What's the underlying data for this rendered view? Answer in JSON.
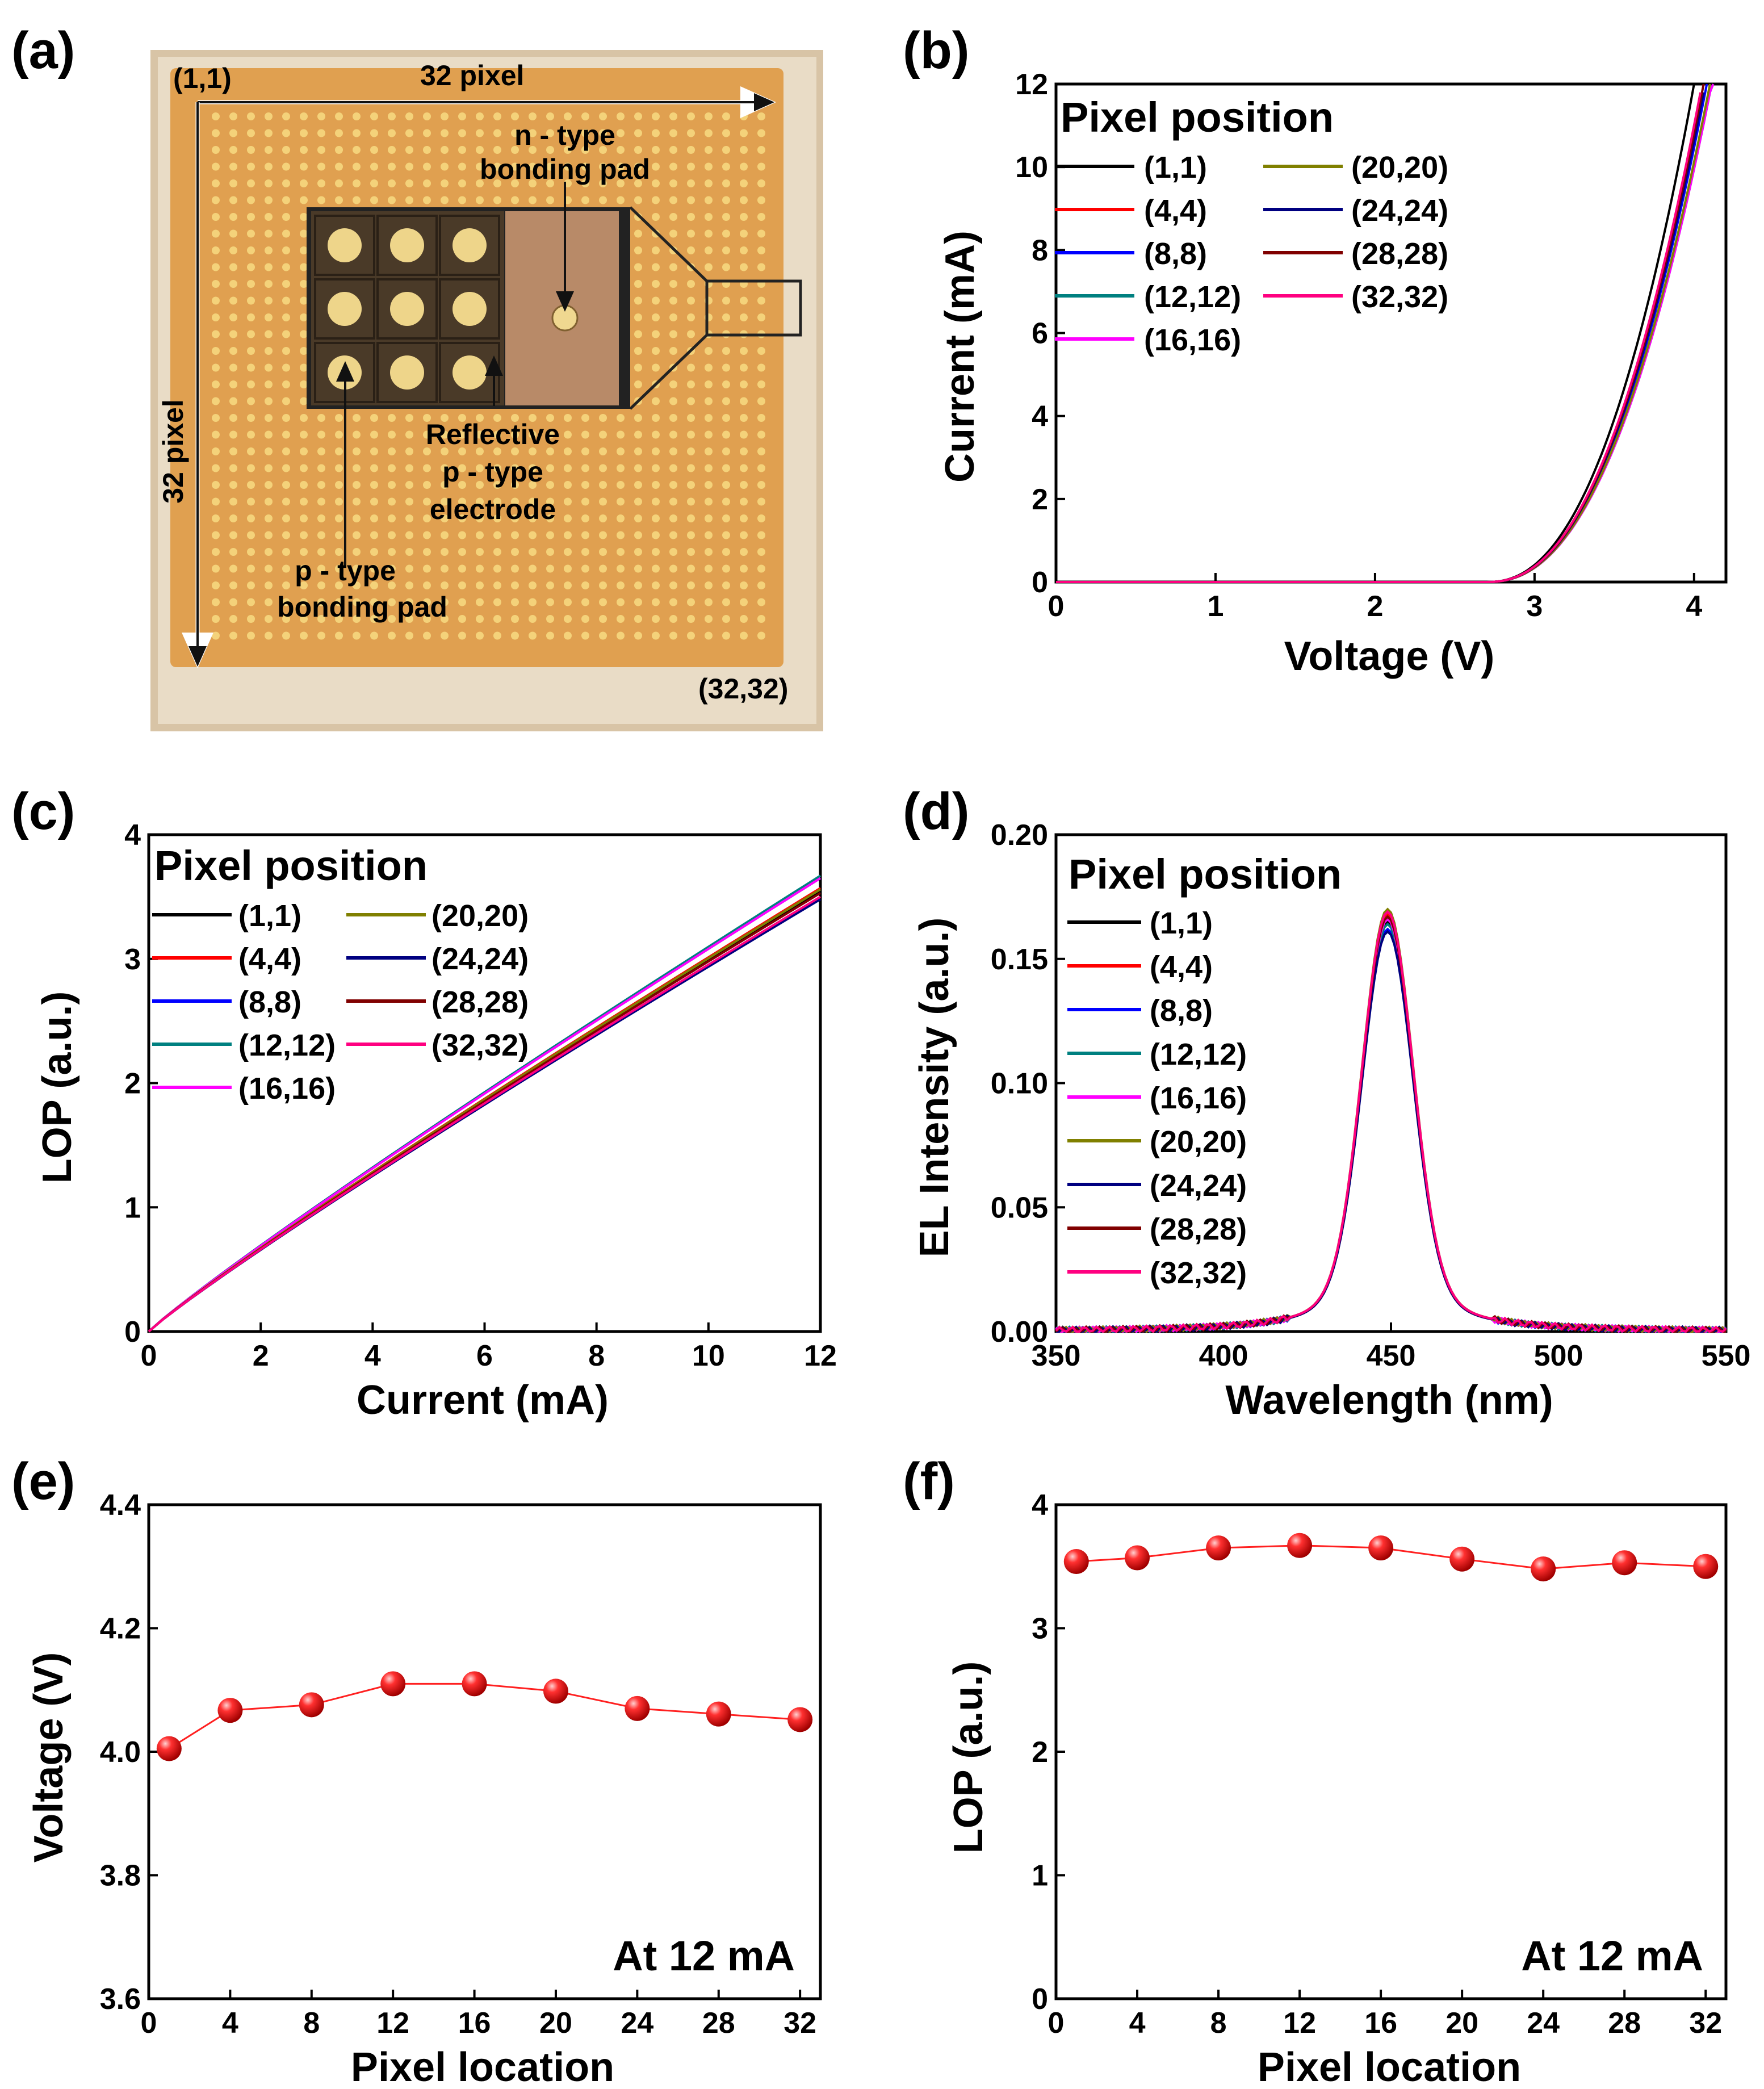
{
  "panels": {
    "a": {
      "letter": "(a)",
      "corner_top_left": "(1,1)",
      "corner_bottom_right": "(32,32)",
      "width_label": "32 pixel",
      "height_label": "32 pixel",
      "n_pad_label_1": "n - type",
      "n_pad_label_2": "bonding pad",
      "p_electrode_label_1": "Reflective",
      "p_electrode_label_2": "p - type",
      "p_electrode_label_3": "electrode",
      "p_pad_label_1": "p - type",
      "p_pad_label_2": "bonding pad",
      "colors": {
        "chip": "#e0a050",
        "dot": "#f4d27a",
        "frame": "#d8c4a6",
        "inset_dark": "#4a3a28",
        "inset_light": "#b88a68"
      }
    },
    "b": {
      "letter": "(b)"
    },
    "c": {
      "letter": "(c)"
    },
    "d": {
      "letter": "(d)"
    },
    "e": {
      "letter": "(e)"
    },
    "f": {
      "letter": "(f)"
    }
  },
  "legend": {
    "title": "Pixel position",
    "series": [
      {
        "name": "(1,1)",
        "color": "#000000"
      },
      {
        "name": "(4,4)",
        "color": "#ff0000"
      },
      {
        "name": "(8,8)",
        "color": "#0000ff"
      },
      {
        "name": "(12,12)",
        "color": "#008080"
      },
      {
        "name": "(16,16)",
        "color": "#ff00ff"
      },
      {
        "name": "(20,20)",
        "color": "#808000"
      },
      {
        "name": "(24,24)",
        "color": "#000080"
      },
      {
        "name": "(28,28)",
        "color": "#800000"
      },
      {
        "name": "(32,32)",
        "color": "#ff0080"
      }
    ]
  },
  "chart_data": [
    {
      "id": "b",
      "type": "line",
      "title": "",
      "xlabel": "Voltage (V)",
      "ylabel": "Current (mA)",
      "xlim": [
        0,
        4.2
      ],
      "ylim": [
        0,
        12
      ],
      "xticks": [
        0,
        1,
        2,
        3,
        4
      ],
      "yticks": [
        0,
        2,
        4,
        6,
        8,
        10,
        12
      ],
      "model": "exponential I-V curves, turn-on ~2.7 V",
      "series": [
        {
          "name": "(1,1)",
          "v_at_12mA": 4.0
        },
        {
          "name": "(4,4)",
          "v_at_12mA": 4.07
        },
        {
          "name": "(8,8)",
          "v_at_12mA": 4.08
        },
        {
          "name": "(12,12)",
          "v_at_12mA": 4.11
        },
        {
          "name": "(16,16)",
          "v_at_12mA": 4.11
        },
        {
          "name": "(20,20)",
          "v_at_12mA": 4.1
        },
        {
          "name": "(24,24)",
          "v_at_12mA": 4.07
        },
        {
          "name": "(28,28)",
          "v_at_12mA": 4.06
        },
        {
          "name": "(32,32)",
          "v_at_12mA": 4.05
        }
      ]
    },
    {
      "id": "c",
      "type": "line",
      "title": "",
      "xlabel": "Current (mA)",
      "ylabel": "LOP (a.u.)",
      "xlim": [
        0,
        12
      ],
      "ylim": [
        0,
        4
      ],
      "xticks": [
        0,
        2,
        4,
        6,
        8,
        10,
        12
      ],
      "yticks": [
        0,
        1,
        2,
        3,
        4
      ],
      "series": [
        {
          "name": "(1,1)",
          "lop_at_12mA": 3.54
        },
        {
          "name": "(4,4)",
          "lop_at_12mA": 3.57
        },
        {
          "name": "(8,8)",
          "lop_at_12mA": 3.65
        },
        {
          "name": "(12,12)",
          "lop_at_12mA": 3.67
        },
        {
          "name": "(16,16)",
          "lop_at_12mA": 3.65
        },
        {
          "name": "(20,20)",
          "lop_at_12mA": 3.56
        },
        {
          "name": "(24,24)",
          "lop_at_12mA": 3.48
        },
        {
          "name": "(28,28)",
          "lop_at_12mA": 3.53
        },
        {
          "name": "(32,32)",
          "lop_at_12mA": 3.5
        }
      ]
    },
    {
      "id": "d",
      "type": "line",
      "title": "",
      "xlabel": "Wavelength (nm)",
      "ylabel": "EL Intensity (a.u.)",
      "xlim": [
        350,
        550
      ],
      "ylim": [
        0,
        0.2
      ],
      "xticks": [
        350,
        400,
        450,
        500,
        550
      ],
      "yticks": [
        0.0,
        0.05,
        0.1,
        0.15,
        0.2
      ],
      "ytick_labels": [
        "0.00",
        "0.05",
        "0.10",
        "0.15",
        "0.20"
      ],
      "peak_wavelength_nm": 449,
      "series": [
        {
          "name": "(1,1)",
          "peak": 0.165
        },
        {
          "name": "(4,4)",
          "peak": 0.168
        },
        {
          "name": "(8,8)",
          "peak": 0.162
        },
        {
          "name": "(12,12)",
          "peak": 0.164
        },
        {
          "name": "(16,16)",
          "peak": 0.166
        },
        {
          "name": "(20,20)",
          "peak": 0.17
        },
        {
          "name": "(24,24)",
          "peak": 0.161
        },
        {
          "name": "(28,28)",
          "peak": 0.167
        },
        {
          "name": "(32,32)",
          "peak": 0.169
        }
      ]
    },
    {
      "id": "e",
      "type": "scatter",
      "title": "",
      "xlabel": "Pixel location",
      "ylabel": "Voltage (V)",
      "xlim": [
        0,
        33
      ],
      "ylim": [
        3.6,
        4.4
      ],
      "xticks": [
        0,
        4,
        8,
        12,
        16,
        20,
        24,
        28,
        32
      ],
      "yticks": [
        3.6,
        3.8,
        4.0,
        4.2,
        4.4
      ],
      "ytick_labels": [
        "3.6",
        "3.8",
        "4.0",
        "4.2",
        "4.4"
      ],
      "x": [
        1,
        4,
        8,
        12,
        16,
        20,
        24,
        28,
        32
      ],
      "y": [
        4.005,
        4.067,
        4.076,
        4.11,
        4.11,
        4.098,
        4.07,
        4.061,
        4.052
      ],
      "annotation": "At 12 mA"
    },
    {
      "id": "f",
      "type": "scatter",
      "title": "",
      "xlabel": "Pixel location",
      "ylabel": "LOP (a.u.)",
      "xlim": [
        0,
        33
      ],
      "ylim": [
        0,
        4
      ],
      "xticks": [
        0,
        4,
        8,
        12,
        16,
        20,
        24,
        28,
        32
      ],
      "yticks": [
        0,
        1,
        2,
        3,
        4
      ],
      "x": [
        1,
        4,
        8,
        12,
        16,
        20,
        24,
        28,
        32
      ],
      "y": [
        3.54,
        3.57,
        3.65,
        3.67,
        3.65,
        3.56,
        3.48,
        3.53,
        3.5
      ],
      "annotation": "At 12 mA"
    }
  ]
}
